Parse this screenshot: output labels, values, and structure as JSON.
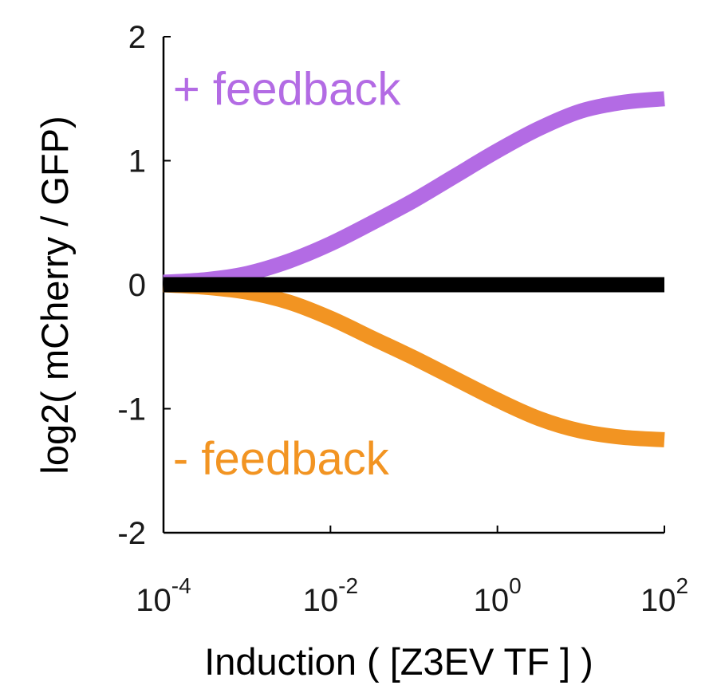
{
  "chart_data": {
    "type": "line",
    "title": "",
    "xlabel": "Induction ( [Z3EV TF ] )",
    "ylabel": "log2( mCherry / GFP)",
    "xscale": "log",
    "xlim": [
      0.0001,
      100
    ],
    "ylim": [
      -2,
      2
    ],
    "grid": false,
    "legend": "none",
    "x_ticks": [
      {
        "value": 0.0001,
        "base": "10",
        "exponent": "-4"
      },
      {
        "value": 0.01,
        "base": "10",
        "exponent": "-2"
      },
      {
        "value": 1,
        "base": "10",
        "exponent": "0"
      },
      {
        "value": 100,
        "base": "10",
        "exponent": "2"
      }
    ],
    "y_ticks": [
      {
        "value": 2,
        "label": "2"
      },
      {
        "value": 1,
        "label": "1"
      },
      {
        "value": 0,
        "label": "0"
      },
      {
        "value": -1,
        "label": "-1"
      },
      {
        "value": -2,
        "label": "-2"
      }
    ],
    "series": [
      {
        "color": "#000000",
        "x": [
          0.0001,
          0.001,
          0.01,
          0.1,
          1,
          10,
          100
        ],
        "y": [
          0,
          0,
          0,
          0,
          0,
          0,
          0
        ]
      },
      {
        "color": "#b36be4",
        "x": [
          0.0001,
          0.000316,
          0.001,
          0.00316,
          0.01,
          0.0316,
          0.1,
          0.316,
          1,
          3.16,
          10,
          31.6,
          100
        ],
        "y": [
          0.02,
          0.04,
          0.09,
          0.19,
          0.33,
          0.5,
          0.68,
          0.88,
          1.08,
          1.26,
          1.4,
          1.47,
          1.5
        ]
      },
      {
        "color": "#f29422",
        "x": [
          0.0001,
          0.000316,
          0.001,
          0.00316,
          0.01,
          0.0316,
          0.1,
          0.316,
          1,
          3.16,
          10,
          31.6,
          100
        ],
        "y": [
          0.0,
          -0.02,
          -0.06,
          -0.14,
          -0.27,
          -0.43,
          -0.59,
          -0.76,
          -0.93,
          -1.08,
          -1.18,
          -1.23,
          -1.25
        ]
      }
    ],
    "annotations": [
      {
        "symbol": "+",
        "text": "feedback",
        "color": "#b36be4",
        "x": 0.00013,
        "y": 1.45
      },
      {
        "symbol": "-",
        "text": "feedback",
        "color": "#f29422",
        "x": 0.00013,
        "y": -1.53
      }
    ]
  }
}
